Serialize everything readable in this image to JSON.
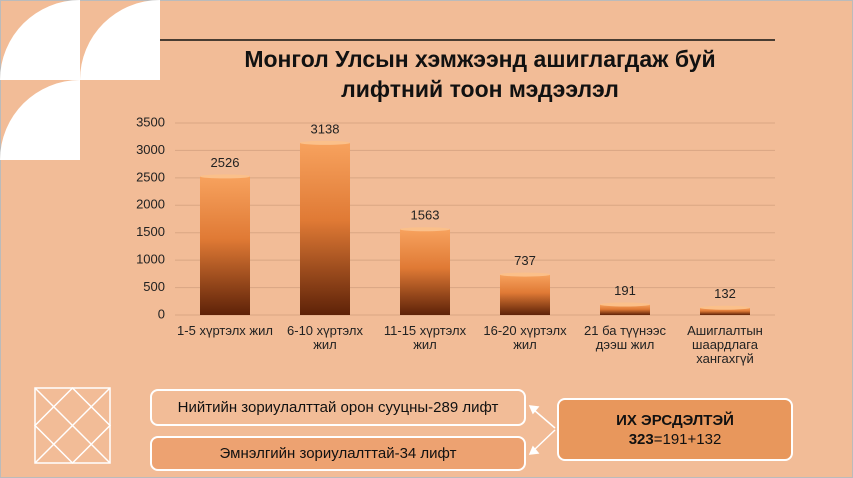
{
  "chart_data": {
    "type": "bar",
    "title": "Монгол Улсын хэмжээнд ашиглагдаж буй лифтний тоон мэдээлэл",
    "categories": [
      "1-5 хүртэлх жил",
      "6-10 хүртэлх жил",
      "11-15 хүртэлх жил",
      "16-20 хүртэлх жил",
      "21 ба түүнээс дээш жил",
      "Ашиглалтын шаардлага хангахгүй"
    ],
    "values": [
      2526,
      3138,
      1563,
      737,
      191,
      132
    ],
    "color": "#F7A25E",
    "ylim": [
      0,
      3500
    ],
    "yticks": [
      0,
      500,
      1000,
      1500,
      2000,
      2500,
      3000,
      3500
    ],
    "grid": true
  },
  "callouts": {
    "boxes": [
      "Нийтийн зориулалттай орон сууцны-289 лифт",
      "Эмнэлгийн зориулалттай-34 лифт"
    ],
    "risk": {
      "title": "ИХ ЭРСДЭЛТЭЙ",
      "total": "323",
      "formula": "=191+132"
    }
  }
}
